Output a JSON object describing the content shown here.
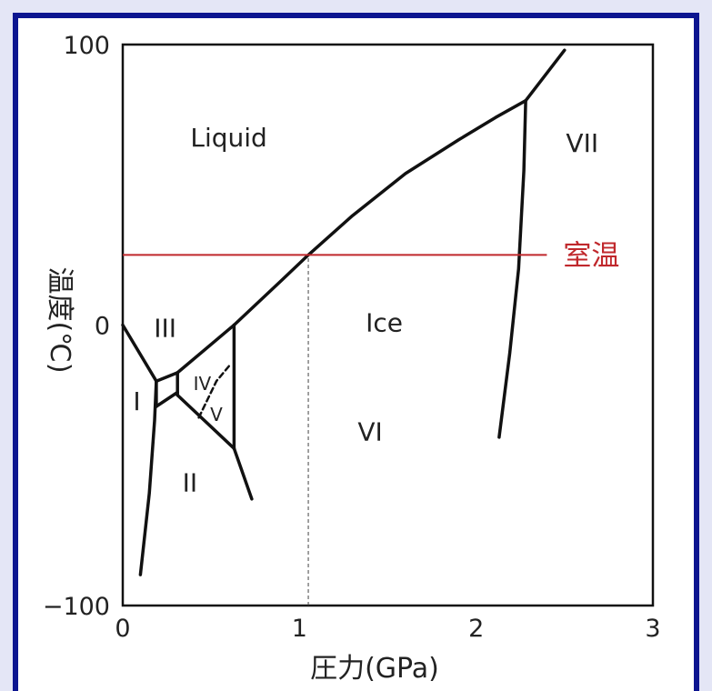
{
  "colors": {
    "outer_background": "#e4e6f6",
    "border": "#0c1590",
    "panel": "#ffffff",
    "curve": "#111111",
    "room_temperature": "#c0282c"
  },
  "chart_data": {
    "type": "line",
    "title": "",
    "xlabel": "圧力(GPa)",
    "ylabel": "温度(℃)",
    "xlim": [
      0,
      3
    ],
    "ylim": [
      -100,
      100
    ],
    "xticks": [
      "0",
      "1",
      "2",
      "3"
    ],
    "yticks": [
      "100",
      "0",
      "-100"
    ],
    "grid": false,
    "phase_boundaries": [
      {
        "id": "ice-I-melting",
        "style": "solid",
        "points": [
          [
            0.0,
            0.0
          ],
          [
            0.19,
            -20.0
          ]
        ]
      },
      {
        "id": "ice-I-II",
        "style": "solid",
        "points": [
          [
            0.1,
            -89.0
          ],
          [
            0.15,
            -60.0
          ],
          [
            0.18,
            -34.0
          ],
          [
            0.19,
            -20.0
          ]
        ]
      },
      {
        "id": "ice-I-III",
        "style": "solid",
        "points": [
          [
            0.19,
            -20.0
          ],
          [
            0.19,
            -29.0
          ]
        ]
      },
      {
        "id": "ice-III-II-lower",
        "style": "solid",
        "points": [
          [
            0.19,
            -29.0
          ],
          [
            0.31,
            -24.0
          ]
        ]
      },
      {
        "id": "ice-III-melting",
        "style": "solid",
        "points": [
          [
            0.19,
            -20.0
          ],
          [
            0.31,
            -17.0
          ]
        ]
      },
      {
        "id": "ice-III-II",
        "style": "solid",
        "points": [
          [
            0.31,
            -17.0
          ],
          [
            0.31,
            -25.0
          ]
        ]
      },
      {
        "id": "liquid-V",
        "style": "solid",
        "points": [
          [
            0.31,
            -17.0
          ],
          [
            0.63,
            0.0
          ]
        ]
      },
      {
        "id": "V-VI",
        "style": "solid",
        "points": [
          [
            0.63,
            0.0
          ],
          [
            0.63,
            -44.0
          ]
        ]
      },
      {
        "id": "II-V",
        "style": "solid",
        "points": [
          [
            0.31,
            -25.0
          ],
          [
            0.63,
            -44.0
          ]
        ]
      },
      {
        "id": "II-VI",
        "style": "solid",
        "points": [
          [
            0.63,
            -44.0
          ],
          [
            0.73,
            -62.0
          ]
        ]
      },
      {
        "id": "IV-metastable",
        "style": "dashed",
        "points": [
          [
            0.43,
            -33.0
          ],
          [
            0.53,
            -20.0
          ],
          [
            0.61,
            -14.0
          ]
        ]
      },
      {
        "id": "liquid-VI",
        "style": "solid",
        "points": [
          [
            0.63,
            0.0
          ],
          [
            0.9,
            16.0
          ],
          [
            1.05,
            25.0
          ],
          [
            1.3,
            39.0
          ],
          [
            1.6,
            54.0
          ],
          [
            1.9,
            66.0
          ],
          [
            2.11,
            74.0
          ],
          [
            2.28,
            80.0
          ]
        ]
      },
      {
        "id": "liquid-VII",
        "style": "solid",
        "points": [
          [
            2.28,
            80.0
          ],
          [
            2.5,
            98.0
          ]
        ]
      },
      {
        "id": "VI-VII",
        "style": "solid",
        "points": [
          [
            2.28,
            80.0
          ],
          [
            2.27,
            55.0
          ],
          [
            2.24,
            20.0
          ],
          [
            2.19,
            -10.0
          ],
          [
            2.13,
            -40.0
          ]
        ]
      }
    ],
    "room_temperature": {
      "label": "室温",
      "y": 25,
      "x_range": [
        0,
        2.4
      ],
      "style": "solid"
    },
    "reference_line": {
      "x": 1.05,
      "y_range": [
        -100,
        25
      ],
      "style": "dashed"
    },
    "phase_labels": [
      {
        "text": "Liquid",
        "x": 0.6,
        "y": 67
      },
      {
        "text": "VII",
        "x": 2.6,
        "y": 65
      },
      {
        "text": "Ice",
        "x": 1.48,
        "y": 1
      },
      {
        "text": "VI",
        "x": 1.4,
        "y": -38
      },
      {
        "text": "III",
        "x": 0.24,
        "y": -1
      },
      {
        "text": "I",
        "x": 0.08,
        "y": -27
      },
      {
        "text": "IV",
        "x": 0.45,
        "y": -20
      },
      {
        "text": "V",
        "x": 0.53,
        "y": -31
      },
      {
        "text": "II",
        "x": 0.38,
        "y": -56
      }
    ]
  }
}
